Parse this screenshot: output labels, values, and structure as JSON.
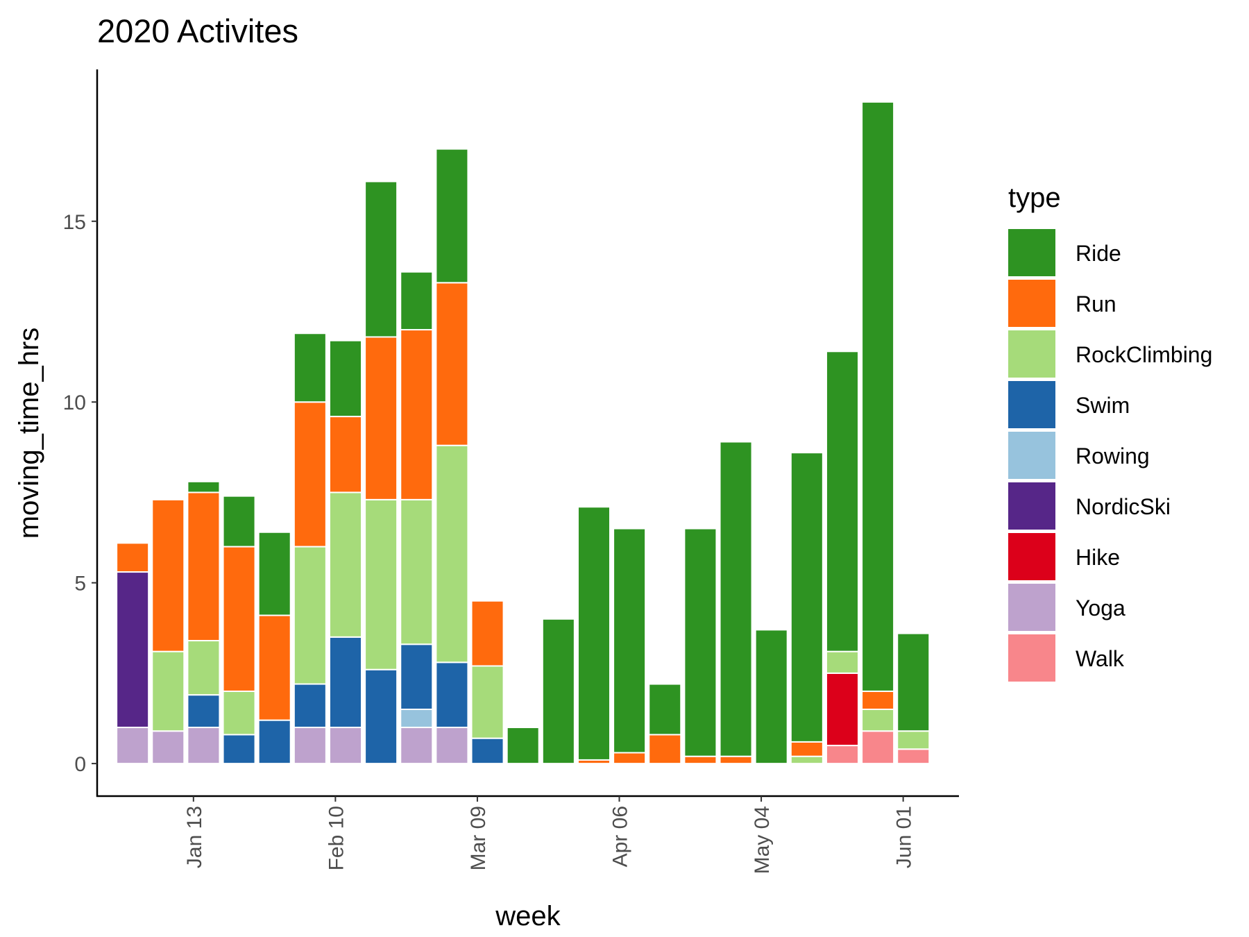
{
  "chart_data": {
    "type": "bar",
    "stacked": true,
    "title": "2020 Activites",
    "xlabel": "week",
    "ylabel": "moving_time_hrs",
    "x": [
      "2020-01-01",
      "2020-01-08",
      "2020-01-15",
      "2020-01-22",
      "2020-01-29",
      "2020-02-05",
      "2020-02-12",
      "2020-02-19",
      "2020-02-26",
      "2020-03-04",
      "2020-03-11",
      "2020-03-18",
      "2020-03-25",
      "2020-04-01",
      "2020-04-08",
      "2020-04-15",
      "2020-04-22",
      "2020-04-29",
      "2020-05-06",
      "2020-05-13",
      "2020-05-20",
      "2020-05-27",
      "2020-06-03"
    ],
    "x_ticks": [
      {
        "date": "2020-01-13",
        "label": "Jan 13"
      },
      {
        "date": "2020-02-10",
        "label": "Feb 10"
      },
      {
        "date": "2020-03-09",
        "label": "Mar 09"
      },
      {
        "date": "2020-04-06",
        "label": "Apr 06"
      },
      {
        "date": "2020-05-04",
        "label": "May 04"
      },
      {
        "date": "2020-06-01",
        "label": "Jun 01"
      }
    ],
    "y_ticks": [
      0,
      5,
      10,
      15
    ],
    "ylim": [
      -0.9,
      19.2
    ],
    "xlim": [
      "2019-12-25",
      "2020-06-12"
    ],
    "grid": false,
    "legend": {
      "title": "type",
      "position": "right"
    },
    "series": [
      {
        "name": "Yoga",
        "color": "#BEA2CD",
        "values": [
          1.0,
          0.9,
          1.0,
          0,
          0,
          1.0,
          1.0,
          0,
          1.0,
          1.0,
          0,
          0,
          0,
          0,
          0,
          0,
          0,
          0,
          0,
          0,
          0,
          0,
          0
        ]
      },
      {
        "name": "Walk",
        "color": "#F8868B",
        "values": [
          0,
          0,
          0,
          0,
          0,
          0,
          0,
          0,
          0,
          0,
          0,
          0,
          0,
          0,
          0,
          0,
          0,
          0,
          0,
          0,
          0.5,
          0.9,
          0.4
        ]
      },
      {
        "name": "Hike",
        "color": "#DC001A",
        "values": [
          0,
          0,
          0,
          0,
          0,
          0,
          0,
          0,
          0,
          0,
          0,
          0,
          0,
          0,
          0,
          0,
          0,
          0,
          0,
          0,
          2.0,
          0,
          0
        ]
      },
      {
        "name": "NordicSki",
        "color": "#562688",
        "values": [
          4.3,
          0,
          0,
          0,
          0,
          0,
          0,
          0,
          0,
          0,
          0,
          0,
          0,
          0,
          0,
          0,
          0,
          0,
          0,
          0,
          0,
          0,
          0
        ]
      },
      {
        "name": "Rowing",
        "color": "#97C3DD",
        "values": [
          0,
          0,
          0,
          0,
          0,
          0,
          0,
          0,
          0.5,
          0,
          0,
          0,
          0,
          0,
          0,
          0,
          0,
          0,
          0,
          0,
          0,
          0,
          0
        ]
      },
      {
        "name": "Swim",
        "color": "#1E64A8",
        "values": [
          0,
          0,
          0.9,
          0.8,
          1.2,
          1.2,
          2.5,
          2.6,
          1.8,
          1.8,
          0.7,
          0,
          0,
          0,
          0,
          0,
          0,
          0,
          0,
          0,
          0,
          0,
          0
        ]
      },
      {
        "name": "RockClimbing",
        "color": "#A6DB7A",
        "values": [
          0,
          2.2,
          1.5,
          1.2,
          0,
          3.8,
          4.0,
          4.7,
          4.0,
          6.0,
          2.0,
          0,
          0,
          0,
          0,
          0,
          0,
          0,
          0,
          0.2,
          0.6,
          0.6,
          0.5
        ]
      },
      {
        "name": "Run",
        "color": "#FF6A0D",
        "values": [
          0.8,
          4.2,
          4.1,
          4.0,
          2.9,
          4.0,
          2.1,
          4.5,
          4.7,
          4.5,
          1.8,
          0,
          0,
          0.1,
          0.3,
          0.8,
          0.2,
          0.2,
          0,
          0.4,
          0,
          0.5,
          0
        ]
      },
      {
        "name": "Ride",
        "color": "#2E9322",
        "values": [
          0,
          0,
          0.3,
          1.4,
          2.3,
          1.9,
          2.1,
          4.3,
          1.6,
          3.7,
          0,
          1.0,
          4.0,
          7.0,
          6.2,
          1.4,
          6.3,
          8.7,
          3.7,
          8.0,
          8.3,
          16.3,
          2.7
        ]
      }
    ],
    "legend_order": [
      "Ride",
      "Run",
      "RockClimbing",
      "Swim",
      "Rowing",
      "NordicSki",
      "Hike",
      "Yoga",
      "Walk"
    ]
  }
}
